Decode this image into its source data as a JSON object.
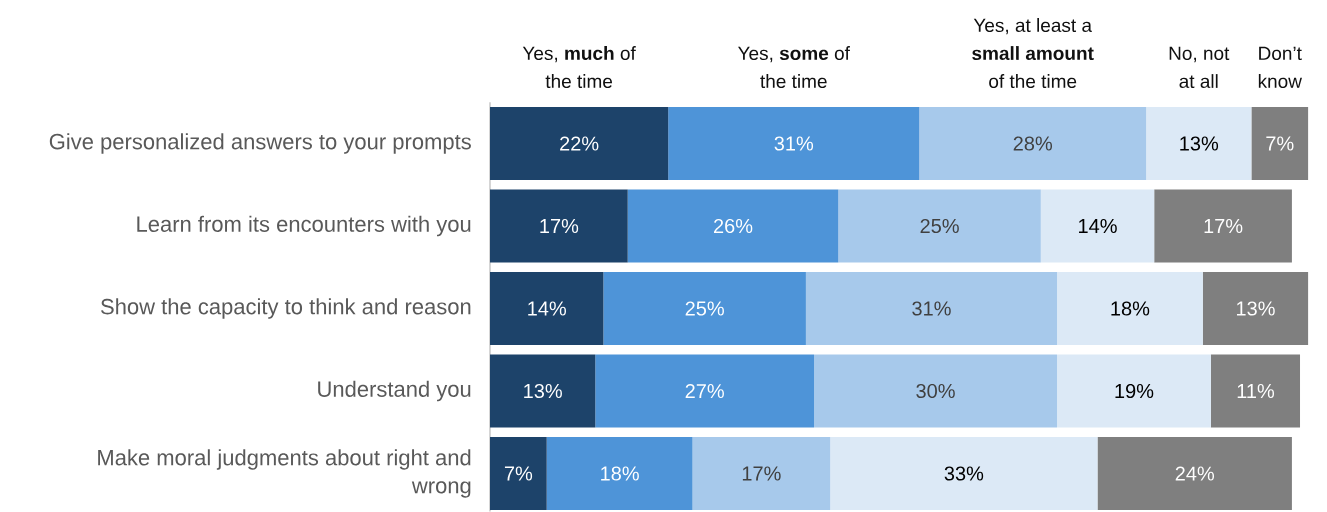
{
  "chart_data": {
    "type": "bar",
    "orientation": "horizontal",
    "stacked": true,
    "legend": "top",
    "tick_labels": "y",
    "categories": [
      "Give personalized answers to your prompts",
      "Learn from its encounters with you",
      "Show the capacity to think and reason",
      "Understand you",
      "Make moral judgments about right and wrong"
    ],
    "series": [
      {
        "name": "Yes, **much** of the time",
        "color": "#1d436a",
        "values": [
          22,
          17,
          14,
          13,
          7
        ],
        "value_labels": [
          "22%",
          "17%",
          "14%",
          "13%",
          "7%"
        ]
      },
      {
        "name": "Yes, **some** of the time",
        "color": "#4e94d8",
        "values": [
          31,
          26,
          25,
          27,
          18
        ],
        "value_labels": [
          "31%",
          "26%",
          "25%",
          "27%",
          "18%"
        ]
      },
      {
        "name": "Yes, at least a **small amount** of the time",
        "color": "#a7c9eb",
        "values": [
          28,
          25,
          31,
          30,
          17
        ],
        "value_labels": [
          "28%",
          "25%",
          "31%",
          "30%",
          "17%"
        ]
      },
      {
        "name": "No, not at all",
        "color": "#dce9f6",
        "values": [
          13,
          14,
          18,
          19,
          33
        ],
        "value_labels": [
          "13%",
          "14%",
          "18%",
          "19%",
          "33%"
        ]
      },
      {
        "name": "Don’t know",
        "color": "#7f7f7f",
        "values": [
          7,
          17,
          13,
          11,
          24
        ],
        "value_labels": [
          "7%",
          "17%",
          "13%",
          "11%",
          "24%"
        ]
      }
    ]
  }
}
